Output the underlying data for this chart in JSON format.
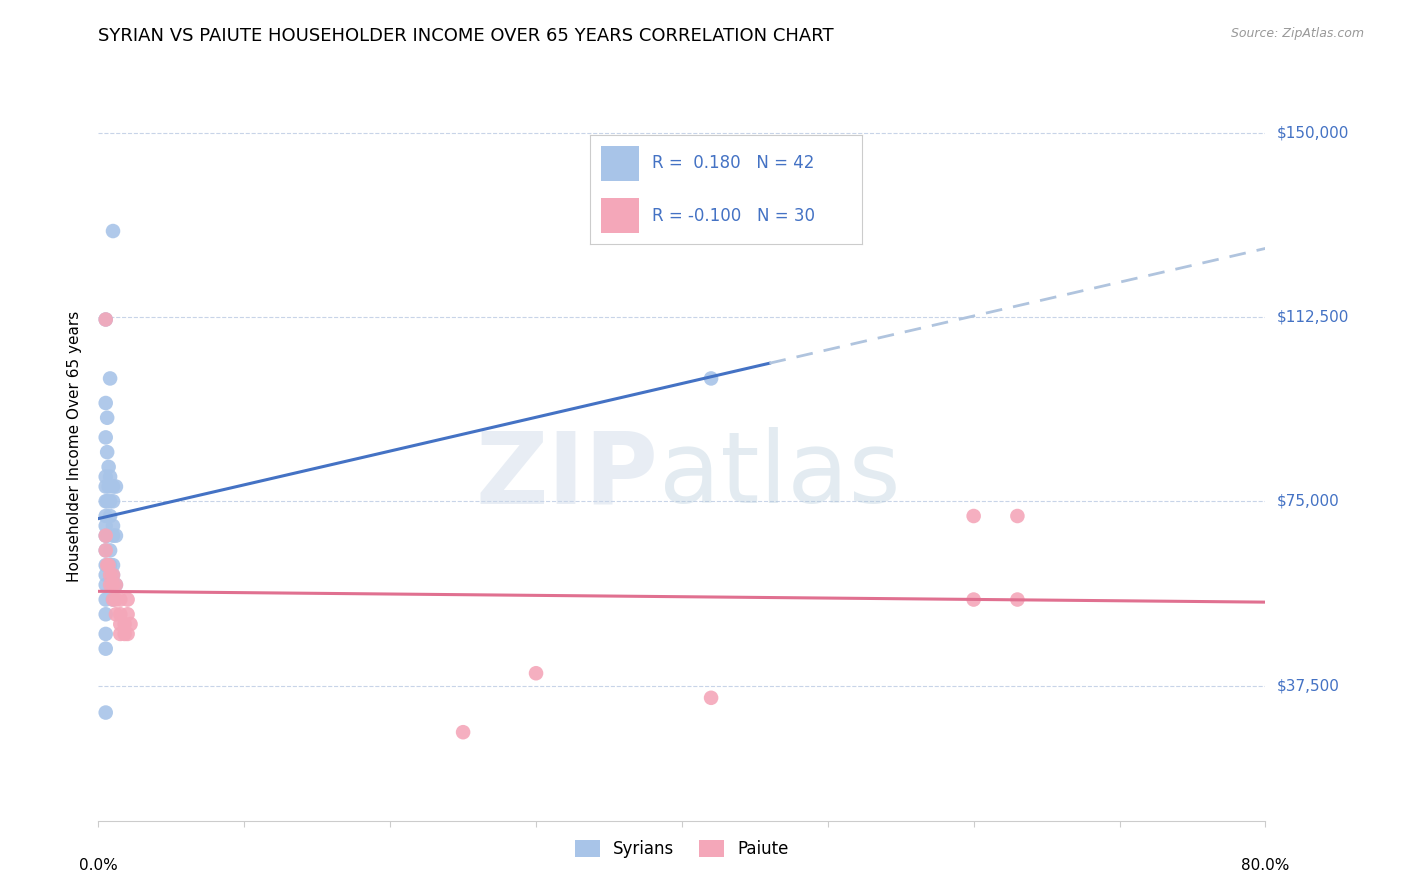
{
  "title": "SYRIAN VS PAIUTE HOUSEHOLDER INCOME OVER 65 YEARS CORRELATION CHART",
  "source": "Source: ZipAtlas.com",
  "ylabel": "Householder Income Over 65 years",
  "xlim": [
    0.0,
    0.8
  ],
  "ylim": [
    10000,
    162500
  ],
  "yticks": [
    37500,
    75000,
    112500,
    150000
  ],
  "ytick_labels": [
    "$37,500",
    "$75,000",
    "$112,500",
    "$150,000"
  ],
  "syrian_color": "#a8c4e8",
  "paiute_color": "#f4a7b9",
  "syrian_line_color": "#4472c4",
  "paiute_line_color": "#e07090",
  "syrian_dashed_color": "#b0c4de",
  "syrian_points": [
    [
      0.01,
      130000
    ],
    [
      0.005,
      112000
    ],
    [
      0.008,
      100000
    ],
    [
      0.005,
      95000
    ],
    [
      0.006,
      92000
    ],
    [
      0.005,
      88000
    ],
    [
      0.006,
      85000
    ],
    [
      0.007,
      82000
    ],
    [
      0.005,
      80000
    ],
    [
      0.008,
      80000
    ],
    [
      0.005,
      78000
    ],
    [
      0.007,
      78000
    ],
    [
      0.01,
      78000
    ],
    [
      0.012,
      78000
    ],
    [
      0.005,
      75000
    ],
    [
      0.006,
      75000
    ],
    [
      0.008,
      75000
    ],
    [
      0.01,
      75000
    ],
    [
      0.005,
      72000
    ],
    [
      0.008,
      72000
    ],
    [
      0.005,
      70000
    ],
    [
      0.01,
      70000
    ],
    [
      0.005,
      68000
    ],
    [
      0.006,
      68000
    ],
    [
      0.01,
      68000
    ],
    [
      0.012,
      68000
    ],
    [
      0.005,
      65000
    ],
    [
      0.008,
      65000
    ],
    [
      0.005,
      62000
    ],
    [
      0.008,
      62000
    ],
    [
      0.01,
      62000
    ],
    [
      0.005,
      60000
    ],
    [
      0.01,
      60000
    ],
    [
      0.005,
      58000
    ],
    [
      0.012,
      58000
    ],
    [
      0.005,
      55000
    ],
    [
      0.01,
      55000
    ],
    [
      0.005,
      52000
    ],
    [
      0.005,
      32000
    ],
    [
      0.42,
      100000
    ],
    [
      0.005,
      48000
    ],
    [
      0.005,
      45000
    ]
  ],
  "paiute_points": [
    [
      0.005,
      112000
    ],
    [
      0.005,
      68000
    ],
    [
      0.005,
      65000
    ],
    [
      0.006,
      62000
    ],
    [
      0.007,
      62000
    ],
    [
      0.008,
      60000
    ],
    [
      0.01,
      60000
    ],
    [
      0.008,
      58000
    ],
    [
      0.01,
      58000
    ],
    [
      0.012,
      58000
    ],
    [
      0.01,
      55000
    ],
    [
      0.012,
      55000
    ],
    [
      0.015,
      55000
    ],
    [
      0.012,
      52000
    ],
    [
      0.015,
      52000
    ],
    [
      0.015,
      50000
    ],
    [
      0.018,
      50000
    ],
    [
      0.02,
      55000
    ],
    [
      0.02,
      52000
    ],
    [
      0.022,
      50000
    ],
    [
      0.015,
      48000
    ],
    [
      0.018,
      48000
    ],
    [
      0.02,
      48000
    ],
    [
      0.6,
      72000
    ],
    [
      0.63,
      72000
    ],
    [
      0.6,
      55000
    ],
    [
      0.63,
      55000
    ],
    [
      0.3,
      40000
    ],
    [
      0.42,
      35000
    ],
    [
      0.25,
      28000
    ]
  ],
  "title_fontsize": 13,
  "axis_label_fontsize": 11,
  "tick_fontsize": 11,
  "background_color": "#ffffff",
  "grid_color": "#c8d4e8",
  "right_label_color": "#4472c4"
}
